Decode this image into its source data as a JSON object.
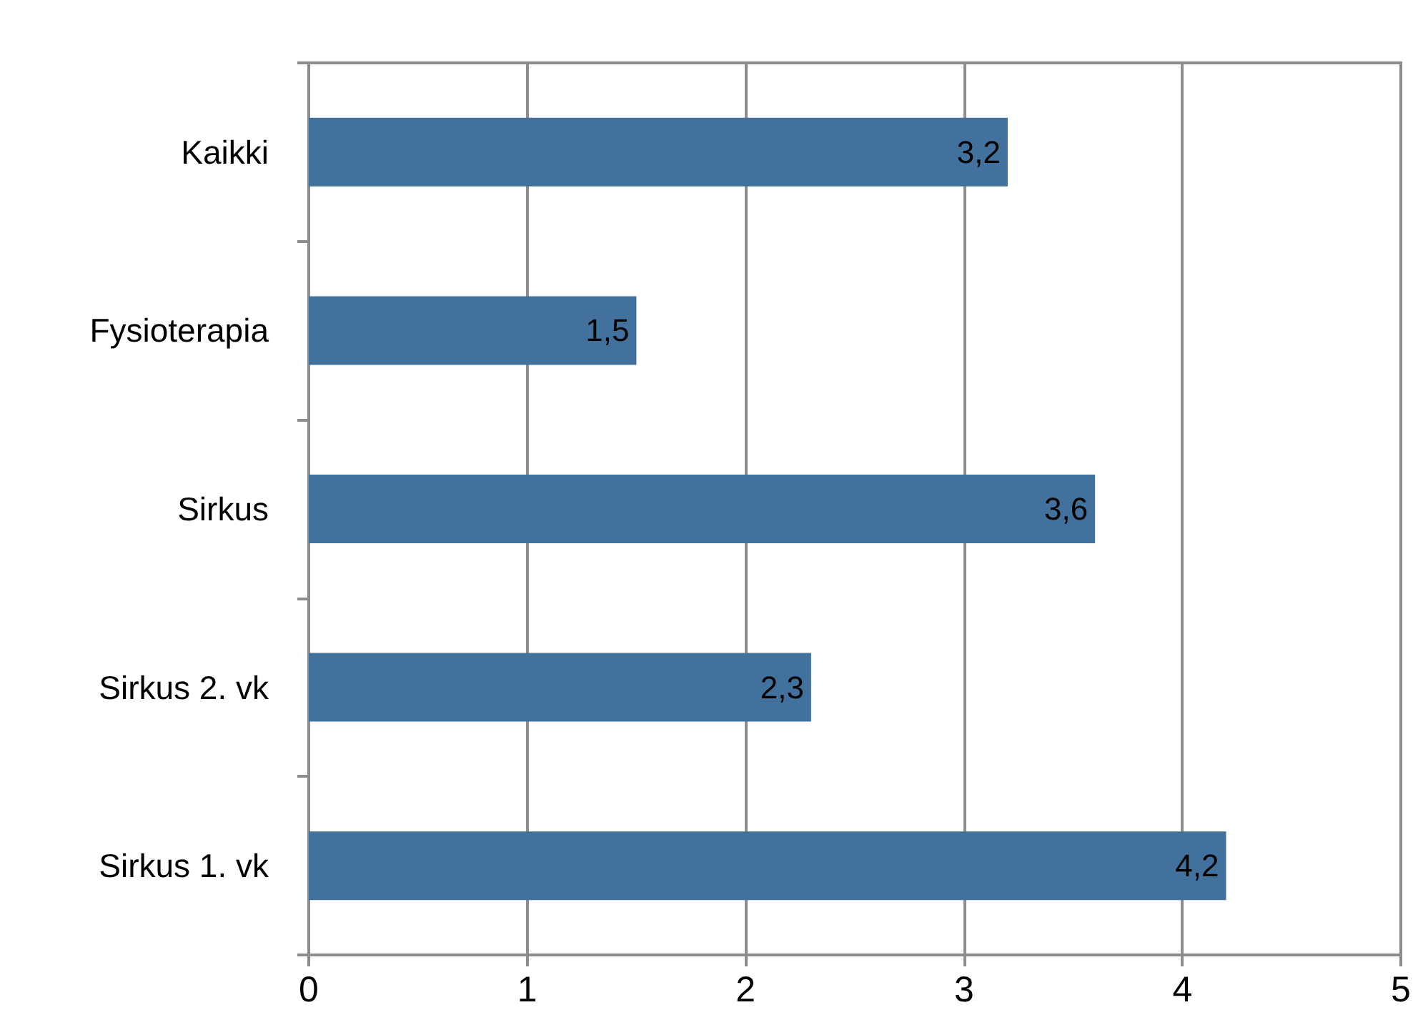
{
  "chart_data": {
    "type": "bar",
    "orientation": "horizontal",
    "categories": [
      "Kaikki",
      "Fysioterapia",
      "Sirkus",
      "Sirkus 2. vk",
      "Sirkus 1. vk"
    ],
    "values": [
      3.2,
      1.5,
      3.6,
      2.3,
      4.2
    ],
    "value_labels": [
      "3,2",
      "1,5",
      "3,6",
      "2,3",
      "4,2"
    ],
    "color": "#41719c",
    "xlim": [
      0,
      5
    ],
    "xticks": [
      0,
      1,
      2,
      3,
      4,
      5
    ],
    "grid": "x"
  }
}
